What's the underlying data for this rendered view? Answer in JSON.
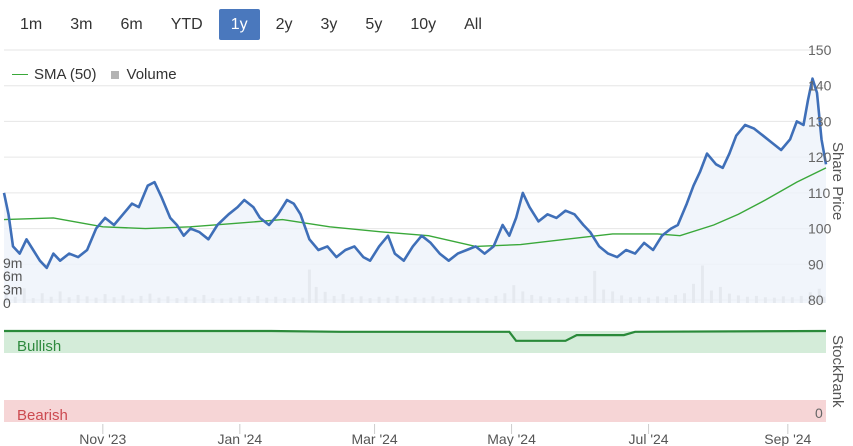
{
  "range_selector": {
    "buttons": [
      "1m",
      "3m",
      "6m",
      "YTD",
      "1y",
      "2y",
      "3y",
      "5y",
      "10y",
      "All"
    ],
    "active": "1y"
  },
  "legend": {
    "sma_label": "SMA (50)",
    "volume_label": "Volume"
  },
  "colors": {
    "price": "#3f6fb8",
    "price_fill": "#eef2fa",
    "sma": "#3aa83a",
    "volume": "#c4c4c4",
    "rank_line": "#2a8a3a",
    "bullish_band": "#d4ecd9",
    "bearish_band": "#f6d5d6",
    "bullish_text": "#2e8a3e",
    "bearish_text": "#cc4a50",
    "grid": "#e6e6e6"
  },
  "chart_data": [
    {
      "type": "line",
      "price_axis_title": "Share Price",
      "price_ticks": [
        80,
        90,
        100,
        110,
        120,
        130,
        140,
        150
      ],
      "price_range": [
        80,
        150
      ],
      "volume_ticks": [
        "0",
        "3m",
        "6m",
        "9m"
      ],
      "volume_tick_values": [
        0,
        3,
        6,
        9
      ],
      "volume_range": [
        0,
        28
      ],
      "date_labels": [
        "Nov '23",
        "Jan '24",
        "Mar '24",
        "May '24",
        "Jul '24",
        "Sep '24"
      ],
      "date_label_values": [
        "2023-11-01",
        "2024-01-01",
        "2024-03-01",
        "2024-05-01",
        "2024-07-01",
        "2024-09-01"
      ],
      "x_range": [
        "2023-09-18",
        "2024-09-18"
      ],
      "series": [
        {
          "name": "",
          "key": "price",
          "points": [
            [
              "2023-09-18",
              110
            ],
            [
              "2023-09-20",
              104
            ],
            [
              "2023-09-22",
              95
            ],
            [
              "2023-09-25",
              93
            ],
            [
              "2023-09-28",
              97
            ],
            [
              "2023-10-01",
              94
            ],
            [
              "2023-10-04",
              91
            ],
            [
              "2023-10-07",
              89
            ],
            [
              "2023-10-10",
              93
            ],
            [
              "2023-10-13",
              91
            ],
            [
              "2023-10-17",
              93
            ],
            [
              "2023-10-21",
              92
            ],
            [
              "2023-10-25",
              94
            ],
            [
              "2023-10-29",
              100
            ],
            [
              "2023-11-02",
              103
            ],
            [
              "2023-11-06",
              101
            ],
            [
              "2023-11-10",
              104
            ],
            [
              "2023-11-14",
              107
            ],
            [
              "2023-11-17",
              106
            ],
            [
              "2023-11-21",
              112
            ],
            [
              "2023-11-24",
              113
            ],
            [
              "2023-11-27",
              109
            ],
            [
              "2023-12-01",
              103
            ],
            [
              "2023-12-04",
              101
            ],
            [
              "2023-12-07",
              98
            ],
            [
              "2023-12-10",
              100
            ],
            [
              "2023-12-14",
              99
            ],
            [
              "2023-12-18",
              97
            ],
            [
              "2023-12-22",
              101
            ],
            [
              "2023-12-27",
              104
            ],
            [
              "2023-12-31",
              106
            ],
            [
              "2024-01-03",
              108
            ],
            [
              "2024-01-07",
              106
            ],
            [
              "2024-01-10",
              103
            ],
            [
              "2024-01-14",
              101
            ],
            [
              "2024-01-18",
              104
            ],
            [
              "2024-01-22",
              108
            ],
            [
              "2024-01-25",
              107
            ],
            [
              "2024-01-28",
              104
            ],
            [
              "2024-02-01",
              97
            ],
            [
              "2024-02-05",
              94
            ],
            [
              "2024-02-09",
              95
            ],
            [
              "2024-02-13",
              92
            ],
            [
              "2024-02-17",
              94
            ],
            [
              "2024-02-21",
              95
            ],
            [
              "2024-02-25",
              92
            ],
            [
              "2024-02-28",
              91
            ],
            [
              "2024-03-03",
              95
            ],
            [
              "2024-03-07",
              98
            ],
            [
              "2024-03-10",
              93
            ],
            [
              "2024-03-14",
              91
            ],
            [
              "2024-03-18",
              95
            ],
            [
              "2024-03-22",
              98
            ],
            [
              "2024-03-26",
              96
            ],
            [
              "2024-03-30",
              93
            ],
            [
              "2024-04-03",
              91
            ],
            [
              "2024-04-07",
              93
            ],
            [
              "2024-04-11",
              94
            ],
            [
              "2024-04-15",
              95
            ],
            [
              "2024-04-19",
              93
            ],
            [
              "2024-04-23",
              95
            ],
            [
              "2024-04-27",
              101
            ],
            [
              "2024-04-30",
              98
            ],
            [
              "2024-05-03",
              103
            ],
            [
              "2024-05-06",
              110
            ],
            [
              "2024-05-09",
              106
            ],
            [
              "2024-05-13",
              102
            ],
            [
              "2024-05-17",
              104
            ],
            [
              "2024-05-21",
              103
            ],
            [
              "2024-05-25",
              105
            ],
            [
              "2024-05-29",
              104
            ],
            [
              "2024-06-02",
              101
            ],
            [
              "2024-06-05",
              99
            ],
            [
              "2024-06-09",
              95
            ],
            [
              "2024-06-13",
              93
            ],
            [
              "2024-06-17",
              92
            ],
            [
              "2024-06-21",
              94
            ],
            [
              "2024-06-25",
              93
            ],
            [
              "2024-06-29",
              96
            ],
            [
              "2024-07-03",
              94
            ],
            [
              "2024-07-07",
              98
            ],
            [
              "2024-07-11",
              100
            ],
            [
              "2024-07-14",
              101
            ],
            [
              "2024-07-18",
              107
            ],
            [
              "2024-07-21",
              112
            ],
            [
              "2024-07-24",
              116
            ],
            [
              "2024-07-27",
              121
            ],
            [
              "2024-07-31",
              118
            ],
            [
              "2024-08-03",
              117
            ],
            [
              "2024-08-06",
              121
            ],
            [
              "2024-08-09",
              126
            ],
            [
              "2024-08-13",
              129
            ],
            [
              "2024-08-17",
              128
            ],
            [
              "2024-08-21",
              126
            ],
            [
              "2024-08-25",
              124
            ],
            [
              "2024-08-29",
              122
            ],
            [
              "2024-09-02",
              125
            ],
            [
              "2024-09-05",
              130
            ],
            [
              "2024-09-08",
              129
            ],
            [
              "2024-09-10",
              136
            ],
            [
              "2024-09-12",
              142
            ],
            [
              "2024-09-14",
              138
            ],
            [
              "2024-09-16",
              125
            ],
            [
              "2024-09-18",
              118
            ]
          ]
        },
        {
          "name": "SMA (50)",
          "key": "sma",
          "points": [
            [
              "2023-09-18",
              102.5
            ],
            [
              "2023-10-10",
              103
            ],
            [
              "2023-11-01",
              100.5
            ],
            [
              "2023-11-20",
              100
            ],
            [
              "2023-12-10",
              100.5
            ],
            [
              "2023-12-31",
              101.5
            ],
            [
              "2024-01-20",
              102.5
            ],
            [
              "2024-02-10",
              100.5
            ],
            [
              "2024-03-05",
              99
            ],
            [
              "2024-03-25",
              98
            ],
            [
              "2024-04-15",
              95
            ],
            [
              "2024-05-05",
              95.5
            ],
            [
              "2024-05-25",
              97
            ],
            [
              "2024-06-15",
              98.5
            ],
            [
              "2024-07-05",
              98.5
            ],
            [
              "2024-07-15",
              98
            ],
            [
              "2024-07-30",
              101
            ],
            [
              "2024-08-10",
              104
            ],
            [
              "2024-08-22",
              108
            ],
            [
              "2024-09-05",
              113
            ],
            [
              "2024-09-18",
              117
            ]
          ]
        }
      ],
      "volume": {
        "unit": "m",
        "bars": [
          [
            "2023-09-19",
            2.4
          ],
          [
            "2023-09-23",
            1.4
          ],
          [
            "2023-09-27",
            3.3
          ],
          [
            "2023-10-01",
            1.1
          ],
          [
            "2023-10-05",
            2.2
          ],
          [
            "2023-10-09",
            1.4
          ],
          [
            "2023-10-13",
            2.6
          ],
          [
            "2023-10-17",
            1.3
          ],
          [
            "2023-10-21",
            1.8
          ],
          [
            "2023-10-25",
            1.5
          ],
          [
            "2023-10-29",
            1.2
          ],
          [
            "2023-11-02",
            2.0
          ],
          [
            "2023-11-06",
            1.3
          ],
          [
            "2023-11-10",
            1.7
          ],
          [
            "2023-11-14",
            1.0
          ],
          [
            "2023-11-18",
            1.6
          ],
          [
            "2023-11-22",
            2.1
          ],
          [
            "2023-11-26",
            1.2
          ],
          [
            "2023-11-30",
            1.5
          ],
          [
            "2023-12-04",
            1.1
          ],
          [
            "2023-12-08",
            1.4
          ],
          [
            "2023-12-12",
            1.3
          ],
          [
            "2023-12-16",
            1.8
          ],
          [
            "2023-12-20",
            1.1
          ],
          [
            "2023-12-24",
            1.0
          ],
          [
            "2023-12-28",
            1.2
          ],
          [
            "2024-01-01",
            1.5
          ],
          [
            "2024-01-05",
            1.3
          ],
          [
            "2024-01-09",
            1.6
          ],
          [
            "2024-01-13",
            1.2
          ],
          [
            "2024-01-17",
            1.4
          ],
          [
            "2024-01-21",
            1.1
          ],
          [
            "2024-01-25",
            1.3
          ],
          [
            "2024-01-29",
            1.2
          ],
          [
            "2024-02-01",
            7.5
          ],
          [
            "2024-02-04",
            3.6
          ],
          [
            "2024-02-08",
            2.5
          ],
          [
            "2024-02-12",
            1.6
          ],
          [
            "2024-02-16",
            2.0
          ],
          [
            "2024-02-20",
            1.3
          ],
          [
            "2024-02-24",
            1.5
          ],
          [
            "2024-02-28",
            1.1
          ],
          [
            "2024-03-03",
            1.4
          ],
          [
            "2024-03-07",
            1.2
          ],
          [
            "2024-03-11",
            1.6
          ],
          [
            "2024-03-15",
            1.0
          ],
          [
            "2024-03-19",
            1.3
          ],
          [
            "2024-03-23",
            1.2
          ],
          [
            "2024-03-27",
            1.5
          ],
          [
            "2024-03-31",
            1.1
          ],
          [
            "2024-04-04",
            1.3
          ],
          [
            "2024-04-08",
            1.0
          ],
          [
            "2024-04-12",
            1.4
          ],
          [
            "2024-04-16",
            1.2
          ],
          [
            "2024-04-20",
            1.1
          ],
          [
            "2024-04-24",
            1.6
          ],
          [
            "2024-04-28",
            2.2
          ],
          [
            "2024-05-02",
            4.0
          ],
          [
            "2024-05-06",
            2.6
          ],
          [
            "2024-05-10",
            1.8
          ],
          [
            "2024-05-14",
            1.5
          ],
          [
            "2024-05-18",
            1.3
          ],
          [
            "2024-05-22",
            1.1
          ],
          [
            "2024-05-26",
            1.2
          ],
          [
            "2024-05-30",
            1.4
          ],
          [
            "2024-06-03",
            1.6
          ],
          [
            "2024-06-07",
            7.2
          ],
          [
            "2024-06-11",
            3.0
          ],
          [
            "2024-06-15",
            2.6
          ],
          [
            "2024-06-19",
            1.7
          ],
          [
            "2024-06-23",
            1.3
          ],
          [
            "2024-06-27",
            1.4
          ],
          [
            "2024-07-01",
            1.2
          ],
          [
            "2024-07-05",
            1.5
          ],
          [
            "2024-07-09",
            1.3
          ],
          [
            "2024-07-13",
            1.8
          ],
          [
            "2024-07-17",
            2.2
          ],
          [
            "2024-07-21",
            4.3
          ],
          [
            "2024-07-25",
            8.4
          ],
          [
            "2024-07-29",
            2.8
          ],
          [
            "2024-08-02",
            3.6
          ],
          [
            "2024-08-06",
            2.1
          ],
          [
            "2024-08-10",
            1.7
          ],
          [
            "2024-08-14",
            1.4
          ],
          [
            "2024-08-18",
            1.6
          ],
          [
            "2024-08-22",
            1.3
          ],
          [
            "2024-08-26",
            1.2
          ],
          [
            "2024-08-30",
            1.5
          ],
          [
            "2024-09-03",
            1.3
          ],
          [
            "2024-09-07",
            1.6
          ],
          [
            "2024-09-11",
            2.4
          ],
          [
            "2024-09-15",
            3.2
          ],
          [
            "2024-09-17",
            1.4
          ]
        ]
      }
    },
    {
      "type": "line",
      "rank_axis_title": "StockRank",
      "rank_range": [
        0,
        100
      ],
      "rank_tick_label": "0",
      "bands": {
        "bullish_label": "Bullish",
        "bearish_label": "Bearish"
      },
      "series": [
        {
          "name": "",
          "key": "stockrank",
          "points": [
            [
              "2023-09-18",
              100
            ],
            [
              "2024-01-15",
              100
            ],
            [
              "2024-02-15",
              99
            ],
            [
              "2024-04-30",
              99
            ],
            [
              "2024-05-03",
              88
            ],
            [
              "2024-05-25",
              88
            ],
            [
              "2024-05-30",
              95
            ],
            [
              "2024-06-20",
              95
            ],
            [
              "2024-06-25",
              99
            ],
            [
              "2024-09-18",
              100
            ]
          ]
        }
      ]
    }
  ]
}
